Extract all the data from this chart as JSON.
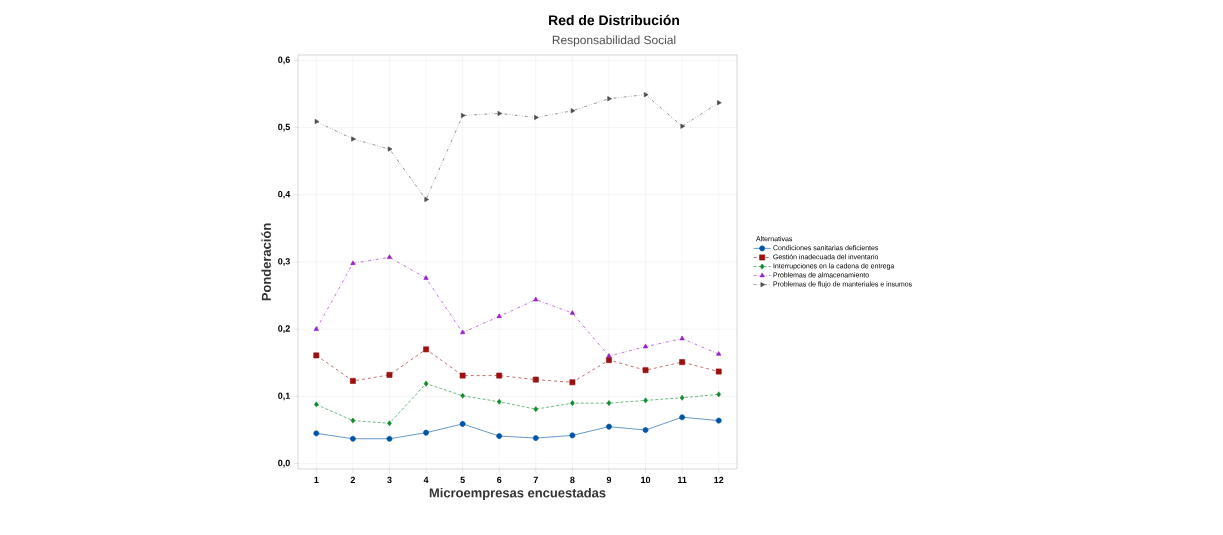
{
  "chart_data": {
    "type": "line",
    "title": "Red de Distribución",
    "subtitle": "Responsabilidad Social",
    "xlabel": "Microempresas encuestadas",
    "ylabel": "Ponderación",
    "legend_title": "Alternativas",
    "categories": [
      "1",
      "2",
      "3",
      "4",
      "5",
      "6",
      "7",
      "8",
      "9",
      "10",
      "11",
      "12"
    ],
    "series": [
      {
        "name": "Condiciones sanitarias deficientes",
        "color": "#0054a6",
        "marker": "circle",
        "line_style": "solid",
        "values": [
          0.045,
          0.037,
          0.037,
          0.046,
          0.059,
          0.041,
          0.038,
          0.042,
          0.055,
          0.05,
          0.069,
          0.064
        ]
      },
      {
        "name": "Gestión inadecuada del inventario",
        "color": "#9b1111",
        "marker": "square",
        "line_style": "dashed",
        "values": [
          0.161,
          0.123,
          0.132,
          0.17,
          0.131,
          0.131,
          0.125,
          0.121,
          0.154,
          0.139,
          0.151,
          0.137
        ]
      },
      {
        "name": "Interrupciones en la cadena de entrega",
        "color": "#0f8a2e",
        "marker": "diamond",
        "line_style": "dotted",
        "values": [
          0.088,
          0.064,
          0.06,
          0.119,
          0.101,
          0.092,
          0.081,
          0.09,
          0.09,
          0.094,
          0.098,
          0.103
        ]
      },
      {
        "name": "Problemas de almacenamiento",
        "color": "#9a1fc4",
        "marker": "triangle",
        "line_style": "dashdot",
        "values": [
          0.2,
          0.298,
          0.307,
          0.276,
          0.195,
          0.219,
          0.244,
          0.224,
          0.16,
          0.174,
          0.186,
          0.163
        ]
      },
      {
        "name": "Problemas de flujo de manteriales e insumos",
        "color": "#4d4d4d",
        "marker": "triangle-right",
        "line_style": "dashdotdot",
        "values": [
          0.509,
          0.483,
          0.468,
          0.393,
          0.518,
          0.521,
          0.515,
          0.525,
          0.543,
          0.549,
          0.502,
          0.537
        ]
      }
    ],
    "ylim": [
      -0.008,
      0.608
    ],
    "yticks": [
      {
        "value": 0,
        "label": "0,0"
      },
      {
        "value": 0.1,
        "label": "0,1"
      },
      {
        "value": 0.2,
        "label": "0,2"
      },
      {
        "value": 0.3,
        "label": "0,3"
      },
      {
        "value": 0.4,
        "label": "0,4"
      },
      {
        "value": 0.5,
        "label": "0,5"
      },
      {
        "value": 0.6,
        "label": "0,6"
      }
    ],
    "grid": true,
    "legend": "right"
  }
}
